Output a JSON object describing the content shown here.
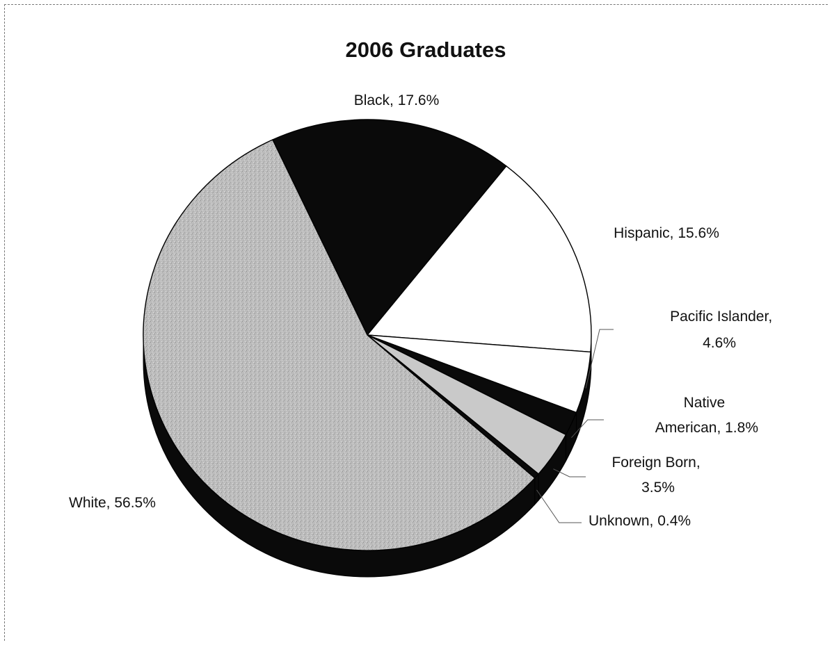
{
  "chart_data": {
    "type": "pie",
    "title": "2006 Graduates",
    "slices": [
      {
        "label": "Black, 17.6%",
        "name": "Black",
        "value": 17.6,
        "color": "#0a0a0a"
      },
      {
        "label": "Hispanic, 15.6%",
        "name": "Hispanic",
        "value": 15.6,
        "color": "#ffffff"
      },
      {
        "label": "Pacific Islander, 4.6%",
        "name": "Pacific Islander",
        "value": 4.6,
        "color": "#ffffff"
      },
      {
        "label": "Native American, 1.8%",
        "name": "Native American",
        "value": 1.8,
        "color": "#0a0a0a"
      },
      {
        "label": "Foreign Born, 3.5%",
        "name": "Foreign Born",
        "value": 3.5,
        "color": "#c9c9c9"
      },
      {
        "label": "Unknown, 0.4%",
        "name": "Unknown",
        "value": 0.4,
        "color": "#0a0a0a"
      },
      {
        "label": "White, 56.5%",
        "name": "White",
        "value": 56.5,
        "color": "#bdbdbd"
      }
    ]
  }
}
